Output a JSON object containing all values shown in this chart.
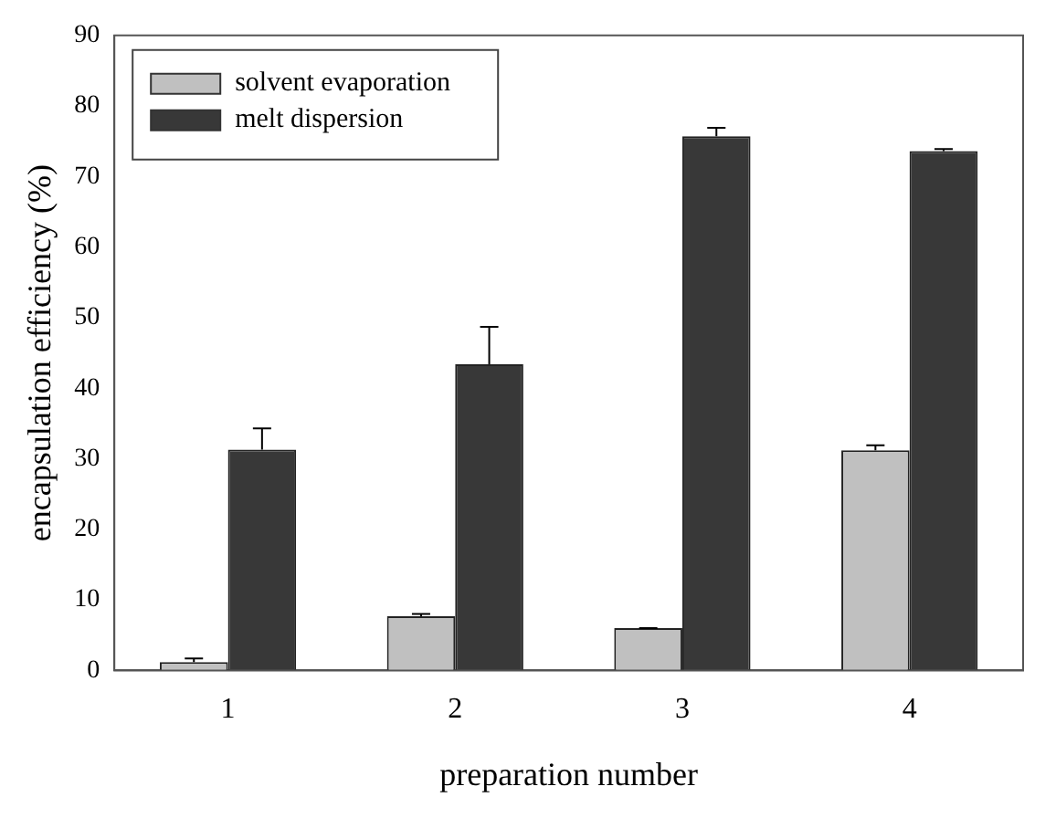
{
  "chart_data": {
    "type": "bar",
    "xlabel": "preparation number",
    "ylabel": "encapsulation efficiency (%)",
    "categories": [
      "1",
      "2",
      "3",
      "4"
    ],
    "series": [
      {
        "name": "solvent evaporation",
        "color": "#c0c0c0",
        "values": [
          1.2,
          7.7,
          6,
          31.2
        ],
        "errors": [
          [
            1.2,
            1.7
          ],
          [
            7.7,
            8
          ],
          [
            6,
            6
          ],
          [
            31.2,
            31.9
          ]
        ]
      },
      {
        "name": "melt dispersion",
        "color": "#383838",
        "values": [
          31.3,
          43.4,
          75.7,
          73.6
        ],
        "errors": [
          [
            31.3,
            34.3
          ],
          [
            43.4,
            48.7
          ],
          [
            75.7,
            76.9
          ],
          [
            73.6,
            73.9
          ]
        ]
      }
    ],
    "ylim": [
      0,
      90
    ],
    "yticks": [
      0,
      10,
      20,
      30,
      40,
      50,
      60,
      70,
      80,
      90
    ],
    "grid": false,
    "legend": "top left"
  }
}
